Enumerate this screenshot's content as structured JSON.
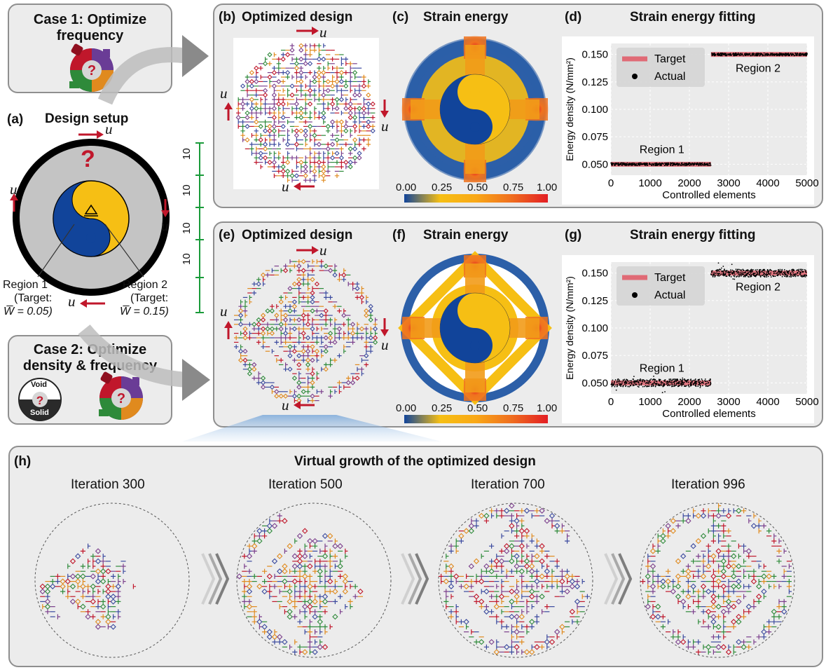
{
  "case1": {
    "title_line1": "Case 1: Optimize",
    "title_line2": "frequency"
  },
  "case2": {
    "title_line1": "Case 2: Optimize",
    "title_line2": "density & frequency",
    "void_label": "Void",
    "solid_label": "Solid"
  },
  "setup": {
    "label": "(a)",
    "title": "Design setup",
    "question": "?",
    "u": "u",
    "region1": {
      "name": "Region 1",
      "target_label": "(Target:",
      "target_value": "W̅ = 0.05)"
    },
    "region2": {
      "name": "Region 2",
      "target_label": "(Target:",
      "target_value": "W̅ = 0.15)"
    }
  },
  "scale": {
    "labels": [
      "10",
      "10",
      "10",
      "10"
    ],
    "color": "#1a9b3a"
  },
  "colors": {
    "arrow": "#c0172b",
    "blue": "#11449a",
    "yellow": "#f6bf14",
    "grey": "#c8c8c8",
    "orange": "#f29b18",
    "red": "#e4262a"
  },
  "row1": {
    "b_label": "(b)",
    "b_title": "Optimized design",
    "c_label": "(c)",
    "c_title": "Strain energy",
    "d_label": "(d)",
    "d_title": "Strain energy fitting"
  },
  "row2": {
    "e_label": "(e)",
    "e_title": "Optimized design",
    "f_label": "(f)",
    "f_title": "Strain energy",
    "g_label": "(g)",
    "g_title": "Strain energy fitting"
  },
  "colorbar": {
    "ticks": [
      "0.00",
      "0.25",
      "0.50",
      "0.75",
      "1.00"
    ]
  },
  "chart_data": [
    {
      "type": "scatter",
      "title": "Strain energy fitting",
      "xlabel": "Controlled elements",
      "ylabel": "Energy density (N/mm²)",
      "xlim": [
        0,
        5000
      ],
      "ylim": [
        0.04,
        0.16
      ],
      "xticks": [
        "0",
        "1000",
        "2000",
        "3000",
        "4000",
        "5000"
      ],
      "yticks": [
        "0.050",
        "0.075",
        "0.100",
        "0.125",
        "0.150"
      ],
      "grid": true,
      "legend": "top-left",
      "series": [
        {
          "name": "Target",
          "x": [
            0,
            2550,
            2550,
            5000
          ],
          "y": [
            0.05,
            0.05,
            0.15,
            0.15
          ]
        },
        {
          "name": "Actual",
          "x": [
            0,
            2550,
            2550,
            5000
          ],
          "y": [
            0.05,
            0.05,
            0.15,
            0.15
          ]
        }
      ],
      "annotations": [
        "Region 1",
        "Region 2"
      ]
    },
    {
      "type": "scatter",
      "title": "Strain energy fitting",
      "xlabel": "Controlled elements",
      "ylabel": "Energy density (N/mm²)",
      "xlim": [
        0,
        5000
      ],
      "ylim": [
        0.04,
        0.16
      ],
      "xticks": [
        "0",
        "1000",
        "2000",
        "3000",
        "4000",
        "5000"
      ],
      "yticks": [
        "0.050",
        "0.075",
        "0.100",
        "0.125",
        "0.150"
      ],
      "grid": true,
      "legend": "top-left",
      "series": [
        {
          "name": "Target",
          "x": [
            0,
            2550,
            2550,
            5000
          ],
          "y": [
            0.05,
            0.05,
            0.15,
            0.15
          ]
        },
        {
          "name": "Actual",
          "x": [
            0,
            2550,
            2550,
            5000
          ],
          "y": [
            0.05,
            0.05,
            0.15,
            0.15
          ]
        }
      ],
      "annotations": [
        "Region 1",
        "Region 2"
      ]
    }
  ],
  "growth": {
    "label": "(h)",
    "title": "Virtual growth of the optimized design",
    "iterations": [
      "Iteration 300",
      "Iteration 500",
      "Iteration 700",
      "Iteration 996"
    ],
    "progress": [
      0.3,
      0.5,
      0.7,
      1.0
    ]
  }
}
